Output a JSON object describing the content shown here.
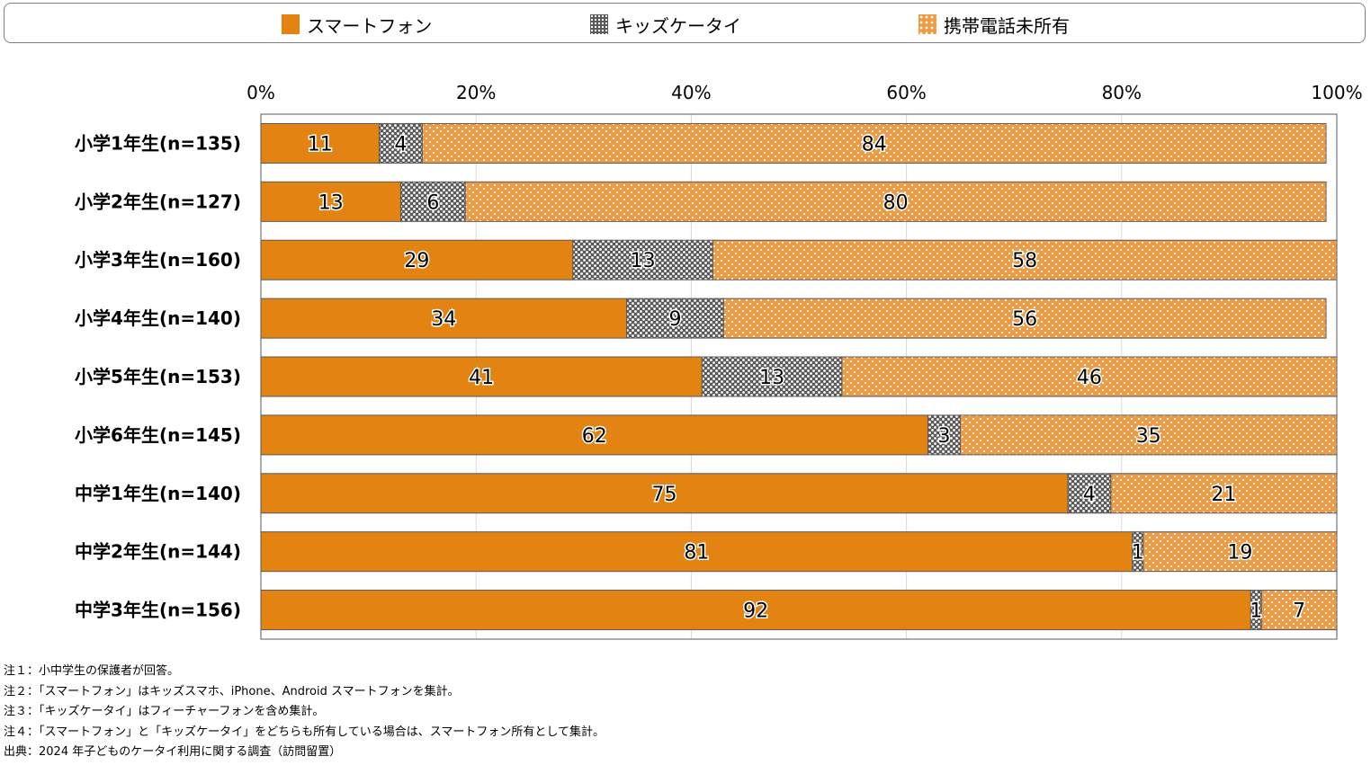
{
  "legend": {
    "items": [
      {
        "label": "スマートフォン",
        "pattern": "solid",
        "color": "#e38311"
      },
      {
        "label": "キッズケータイ",
        "pattern": "crosshatch",
        "color": "#8c8c8c"
      },
      {
        "label": "携帯電話未所有",
        "pattern": "dots",
        "color": "#f09a44"
      }
    ]
  },
  "chart_data": {
    "type": "bar",
    "orientation": "horizontal",
    "stacked": "percent",
    "title": "",
    "xlabel": "",
    "ylabel": "",
    "xlim": [
      0,
      100
    ],
    "x_ticks": [
      "0%",
      "20%",
      "40%",
      "60%",
      "80%",
      "100%"
    ],
    "x_tick_values": [
      0,
      20,
      40,
      60,
      80,
      100
    ],
    "grid": true,
    "legend_position": "top",
    "categories": [
      "小学1年生(n=135)",
      "小学2年生(n=127)",
      "小学3年生(n=160)",
      "小学4年生(n=140)",
      "小学5年生(n=153)",
      "小学6年生(n=145)",
      "中学1年生(n=140)",
      "中学2年生(n=144)",
      "中学3年生(n=156)"
    ],
    "series": [
      {
        "name": "スマートフォン",
        "values": [
          11,
          13,
          29,
          34,
          41,
          62,
          75,
          81,
          92
        ],
        "color": "#e38311",
        "pattern": "solid"
      },
      {
        "name": "キッズケータイ",
        "values": [
          4,
          6,
          13,
          9,
          13,
          3,
          4,
          1,
          1
        ],
        "color": "#8c8c8c",
        "pattern": "crosshatch"
      },
      {
        "name": "携帯電話未所有",
        "values": [
          84,
          80,
          58,
          56,
          46,
          35,
          21,
          19,
          7
        ],
        "color": "#f09a44",
        "pattern": "dots"
      }
    ]
  },
  "notes": [
    "注１：小中学生の保護者が回答。",
    "注２：「スマートフォン」はキッズスマホ、iPhone、Android スマートフォンを集計。",
    "注３：「キッズケータイ」はフィーチャーフォンを含め集計。",
    "注４：「スマートフォン」と「キッズケータイ」をどちらも所有している場合は、スマートフォン所有として集計。",
    "出典：2024 年子どものケータイ利用に関する調査（訪問留置）"
  ]
}
